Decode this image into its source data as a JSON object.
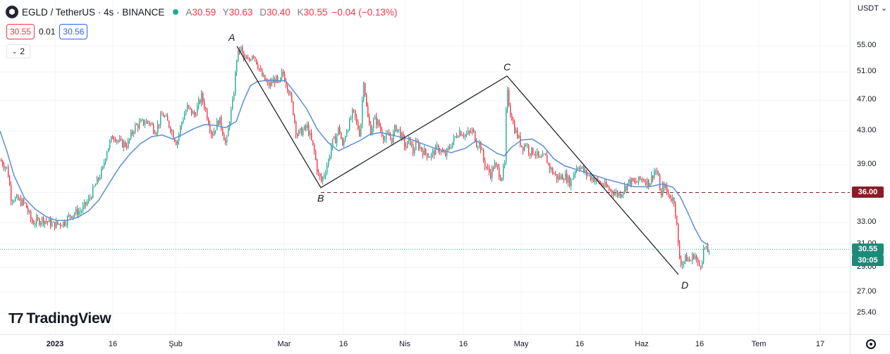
{
  "legend": {
    "symbol_icon": "egld-logo-icon",
    "symbol": "EGLD / TetherUS · 4s · BINANCE",
    "open_label": "A",
    "open": "30.59",
    "high_label": "Y",
    "high": "30.63",
    "low_label": "D",
    "low": "30.40",
    "close_label": "K",
    "close": "30.55",
    "change": "−0.04 (−0.13%)",
    "market_status_icon": "market-open-dot-icon"
  },
  "quote": {
    "sell": "30.55",
    "spread": "0.01",
    "buy": "30.56"
  },
  "indicators": {
    "count": "2",
    "toggle_icon": "chevron-down-icon"
  },
  "axis": {
    "currency": "USDT",
    "currency_icon": "chevron-down-icon",
    "settings_icon": "gear-icon"
  },
  "price_labels": {
    "level_36": "36.00",
    "last_price": "30.55",
    "countdown": "30:05"
  },
  "brand": {
    "logo_icon": "tradingview-logo-icon",
    "name": "TradingView"
  },
  "colors": {
    "up": "#22ab94",
    "down": "#f23645",
    "ma": "#5b8fd4",
    "pattern": "#131722",
    "level_line": "#8a1c28",
    "last_line": "#22ab94",
    "last_label": "#1e8a78"
  },
  "chart_data": {
    "type": "candlestick",
    "pair": "EGLD / TetherUS",
    "timeframe": "4s",
    "exchange": "BINANCE",
    "y_axis": {
      "scale": "log",
      "ticks": [
        "25.40",
        "27.00",
        "29.00",
        "31.00",
        "33.00",
        "36.00",
        "39.00",
        "43.00",
        "47.00",
        "51.00",
        "55.00"
      ],
      "range": [
        24.5,
        62
      ]
    },
    "x_axis": {
      "ticks": [
        {
          "label": "2023",
          "bold": true,
          "x_index": 78
        },
        {
          "label": "16",
          "x_index": 160
        },
        {
          "label": "Şub",
          "x_index": 249
        },
        {
          "label": "Mar",
          "x_index": 403
        },
        {
          "label": "16",
          "x_index": 487
        },
        {
          "label": "Nis",
          "x_index": 574
        },
        {
          "label": "16",
          "x_index": 657
        },
        {
          "label": "May",
          "x_index": 739
        },
        {
          "label": "16",
          "x_index": 822
        },
        {
          "label": "Haz",
          "x_index": 910
        },
        {
          "label": "16",
          "x_index": 992
        },
        {
          "label": "Tem",
          "x_index": 1076
        },
        {
          "label": "17",
          "x_index": 1163
        }
      ]
    },
    "price_path": [
      [
        0,
        39.5
      ],
      [
        10,
        38.5
      ],
      [
        15,
        35.5
      ],
      [
        25,
        35.2
      ],
      [
        35,
        34.8
      ],
      [
        45,
        33.0
      ],
      [
        60,
        33.3
      ],
      [
        75,
        32.8
      ],
      [
        90,
        33.0
      ],
      [
        100,
        33.8
      ],
      [
        115,
        34.2
      ],
      [
        125,
        35.2
      ],
      [
        135,
        36.8
      ],
      [
        145,
        38.5
      ],
      [
        150,
        40.5
      ],
      [
        160,
        42.5
      ],
      [
        170,
        41.5
      ],
      [
        180,
        41.3
      ],
      [
        190,
        43.5
      ],
      [
        200,
        44.0
      ],
      [
        210,
        44.2
      ],
      [
        220,
        43.0
      ],
      [
        230,
        45.2
      ],
      [
        240,
        43.6
      ],
      [
        250,
        41.5
      ],
      [
        258,
        44.5
      ],
      [
        265,
        46.0
      ],
      [
        275,
        45.0
      ],
      [
        285,
        47.5
      ],
      [
        290,
        46.0
      ],
      [
        300,
        42.5
      ],
      [
        310,
        44.5
      ],
      [
        315,
        43.0
      ],
      [
        320,
        41.2
      ],
      [
        325,
        44.5
      ],
      [
        330,
        47.0
      ],
      [
        335,
        53.0
      ],
      [
        340,
        54.8
      ],
      [
        345,
        53.0
      ],
      [
        352,
        52.5
      ],
      [
        358,
        54.0
      ],
      [
        365,
        52.0
      ],
      [
        370,
        50.5
      ],
      [
        380,
        49.0
      ],
      [
        390,
        50.0
      ],
      [
        395,
        49.0
      ],
      [
        400,
        51.0
      ],
      [
        405,
        49.5
      ],
      [
        410,
        48.0
      ],
      [
        415,
        45.5
      ],
      [
        420,
        42.5
      ],
      [
        428,
        43.0
      ],
      [
        435,
        43.5
      ],
      [
        440,
        42.0
      ],
      [
        445,
        40.5
      ],
      [
        450,
        38.0
      ],
      [
        455,
        37.2
      ],
      [
        460,
        38.2
      ],
      [
        465,
        39.5
      ],
      [
        470,
        41.5
      ],
      [
        475,
        42.0
      ],
      [
        480,
        43.5
      ],
      [
        485,
        41.0
      ],
      [
        490,
        43.0
      ],
      [
        495,
        44.0
      ],
      [
        500,
        45.5
      ],
      [
        505,
        44.0
      ],
      [
        510,
        42.5
      ],
      [
        515,
        50.0
      ],
      [
        520,
        45.0
      ],
      [
        525,
        43.0
      ],
      [
        530,
        44.5
      ],
      [
        535,
        44.0
      ],
      [
        540,
        43.0
      ],
      [
        545,
        42.0
      ],
      [
        550,
        42.5
      ],
      [
        555,
        42.0
      ],
      [
        560,
        43.5
      ],
      [
        565,
        43.0
      ],
      [
        570,
        42.0
      ],
      [
        575,
        41.0
      ],
      [
        580,
        42.0
      ],
      [
        585,
        40.5
      ],
      [
        590,
        41.5
      ],
      [
        595,
        41.0
      ],
      [
        600,
        40.5
      ],
      [
        610,
        40.0
      ],
      [
        620,
        41.0
      ],
      [
        630,
        40.0
      ],
      [
        640,
        41.5
      ],
      [
        650,
        43.0
      ],
      [
        660,
        42.5
      ],
      [
        670,
        43.0
      ],
      [
        675,
        41.5
      ],
      [
        680,
        41.5
      ],
      [
        685,
        39.5
      ],
      [
        690,
        38.5
      ],
      [
        695,
        38.0
      ],
      [
        700,
        39.0
      ],
      [
        705,
        38.5
      ],
      [
        710,
        37.5
      ],
      [
        715,
        39.0
      ],
      [
        718,
        48.5
      ],
      [
        722,
        46.0
      ],
      [
        728,
        43.5
      ],
      [
        735,
        42.0
      ],
      [
        740,
        41.0
      ],
      [
        745,
        41.5
      ],
      [
        750,
        40.5
      ],
      [
        758,
        40.5
      ],
      [
        765,
        39.5
      ],
      [
        772,
        40.0
      ],
      [
        780,
        38.5
      ],
      [
        790,
        37.5
      ],
      [
        800,
        37.8
      ],
      [
        808,
        37.0
      ],
      [
        815,
        38.5
      ],
      [
        820,
        39.0
      ],
      [
        830,
        38.0
      ],
      [
        840,
        37.5
      ],
      [
        850,
        37.0
      ],
      [
        860,
        36.5
      ],
      [
        870,
        36.0
      ],
      [
        878,
        35.8
      ],
      [
        885,
        36.5
      ],
      [
        892,
        37.2
      ],
      [
        900,
        37.0
      ],
      [
        910,
        37.5
      ],
      [
        920,
        37.0
      ],
      [
        928,
        38.5
      ],
      [
        933,
        37.5
      ],
      [
        937,
        35.5
      ],
      [
        940,
        37.0
      ],
      [
        945,
        36.0
      ],
      [
        950,
        35.5
      ],
      [
        955,
        35.2
      ],
      [
        958,
        33.5
      ],
      [
        962,
        30.0
      ],
      [
        966,
        29.3
      ],
      [
        972,
        29.8
      ],
      [
        978,
        29.5
      ],
      [
        984,
        30.2
      ],
      [
        990,
        29.0
      ],
      [
        994,
        29.5
      ],
      [
        998,
        30.8
      ],
      [
        1002,
        30.3
      ],
      [
        1006,
        30.55
      ]
    ],
    "moving_average_path": [
      [
        0,
        43.0
      ],
      [
        10,
        40.5
      ],
      [
        20,
        37.8
      ],
      [
        35,
        35.4
      ],
      [
        50,
        34.3
      ],
      [
        65,
        33.6
      ],
      [
        80,
        33.2
      ],
      [
        95,
        33.2
      ],
      [
        110,
        33.5
      ],
      [
        125,
        34.1
      ],
      [
        140,
        35.2
      ],
      [
        155,
        37.0
      ],
      [
        170,
        38.8
      ],
      [
        185,
        40.3
      ],
      [
        200,
        41.5
      ],
      [
        215,
        42.3
      ],
      [
        230,
        42.5
      ],
      [
        245,
        42.0
      ],
      [
        260,
        42.6
      ],
      [
        275,
        43.3
      ],
      [
        290,
        43.8
      ],
      [
        305,
        43.7
      ],
      [
        320,
        43.4
      ],
      [
        335,
        44.2
      ],
      [
        345,
        46.8
      ],
      [
        355,
        49.0
      ],
      [
        365,
        49.6
      ],
      [
        380,
        49.8
      ],
      [
        395,
        49.7
      ],
      [
        405,
        49.7
      ],
      [
        420,
        47.8
      ],
      [
        435,
        45.8
      ],
      [
        450,
        43.2
      ],
      [
        465,
        41.6
      ],
      [
        480,
        40.6
      ],
      [
        495,
        41.2
      ],
      [
        510,
        41.8
      ],
      [
        525,
        42.6
      ],
      [
        540,
        42.8
      ],
      [
        555,
        42.5
      ],
      [
        570,
        42.2
      ],
      [
        585,
        41.9
      ],
      [
        600,
        41.4
      ],
      [
        620,
        40.8
      ],
      [
        640,
        40.4
      ],
      [
        660,
        40.9
      ],
      [
        675,
        41.8
      ],
      [
        690,
        41.1
      ],
      [
        705,
        40.3
      ],
      [
        715,
        40.0
      ],
      [
        725,
        41.0
      ],
      [
        740,
        41.9
      ],
      [
        755,
        42.0
      ],
      [
        770,
        41.2
      ],
      [
        785,
        39.7
      ],
      [
        800,
        38.9
      ],
      [
        820,
        38.4
      ],
      [
        840,
        37.9
      ],
      [
        860,
        37.4
      ],
      [
        880,
        37.0
      ],
      [
        900,
        36.6
      ],
      [
        920,
        36.6
      ],
      [
        940,
        36.9
      ],
      [
        955,
        36.5
      ],
      [
        965,
        35.5
      ],
      [
        975,
        34.0
      ],
      [
        985,
        32.5
      ],
      [
        995,
        31.3
      ],
      [
        1005,
        30.9
      ]
    ],
    "pattern": {
      "name": "ABCD",
      "points": [
        {
          "label": "A",
          "x_index": 336,
          "price": 54.9
        },
        {
          "label": "B",
          "x_index": 455,
          "price": 36.5
        },
        {
          "label": "C",
          "x_index": 719,
          "price": 50.4
        },
        {
          "label": "D",
          "x_index": 962,
          "price": 28.4
        }
      ]
    },
    "horizontal_level": {
      "price": 36.0,
      "style": "dashed",
      "start_x_index": 455
    },
    "last_price": 30.55
  }
}
